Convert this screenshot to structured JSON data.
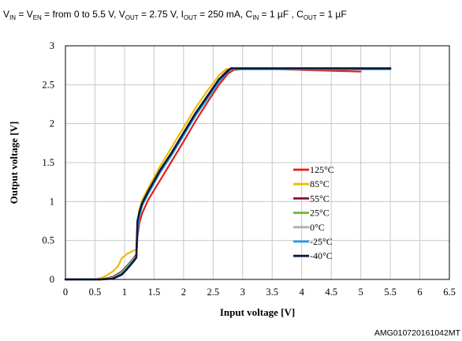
{
  "chart_data": {
    "type": "line",
    "title_parts": [
      {
        "t": "V",
        "sub": false
      },
      {
        "t": "IN",
        "sub": true
      },
      {
        "t": " = V",
        "sub": false
      },
      {
        "t": "EN",
        "sub": true
      },
      {
        "t": " = from 0 to 5.5 V, V",
        "sub": false
      },
      {
        "t": "OUT",
        "sub": true
      },
      {
        "t": " = 2.75 V, I",
        "sub": false
      },
      {
        "t": "OUT",
        "sub": true
      },
      {
        "t": " = 250 mA,  C",
        "sub": false
      },
      {
        "t": "IN",
        "sub": true
      },
      {
        "t": " = 1 µF , C",
        "sub": false
      },
      {
        "t": "OUT",
        "sub": true
      },
      {
        "t": " = 1 µF",
        "sub": false
      }
    ],
    "xlabel": "Input voltage [V]",
    "ylabel": "Output voltage [V]",
    "xlim": [
      0,
      6.5
    ],
    "ylim": [
      0,
      3
    ],
    "xticks": [
      "0",
      "0.5",
      "1",
      "1.5",
      "2",
      "2.5",
      "3",
      "3.5",
      "4",
      "4.5",
      "5",
      "5.5",
      "6",
      "6.5"
    ],
    "yticks": [
      "0",
      "0.5",
      "1",
      "1.5",
      "2",
      "2.5",
      "3"
    ],
    "grid": true,
    "legend_position": "center-right",
    "series": [
      {
        "name": "125°C",
        "color": "#e41e1e",
        "x": [
          0,
          0.5,
          0.7,
          0.85,
          0.95,
          1.05,
          1.15,
          1.2,
          1.22,
          1.25,
          1.3,
          1.4,
          1.6,
          1.8,
          2.0,
          2.2,
          2.4,
          2.6,
          2.75,
          2.85,
          3.0,
          3.5,
          4.0,
          4.5,
          5.0
        ],
        "y": [
          0,
          0,
          0.01,
          0.04,
          0.1,
          0.18,
          0.25,
          0.3,
          0.55,
          0.72,
          0.85,
          1.02,
          1.27,
          1.52,
          1.77,
          2.03,
          2.27,
          2.5,
          2.64,
          2.69,
          2.7,
          2.7,
          2.69,
          2.68,
          2.67
        ]
      },
      {
        "name": "85°C",
        "color": "#f5b800",
        "x": [
          0,
          0.5,
          0.65,
          0.8,
          0.9,
          0.95,
          1.05,
          1.15,
          1.2,
          1.22,
          1.25,
          1.3,
          1.4,
          1.6,
          1.8,
          2.0,
          2.2,
          2.4,
          2.6,
          2.72,
          2.8,
          3.0,
          3.5,
          4.0,
          4.5,
          5.0,
          5.5
        ],
        "y": [
          0,
          0,
          0.03,
          0.1,
          0.18,
          0.27,
          0.33,
          0.37,
          0.38,
          0.72,
          0.9,
          1.02,
          1.17,
          1.45,
          1.7,
          1.95,
          2.2,
          2.42,
          2.62,
          2.7,
          2.7,
          2.7,
          2.7,
          2.7,
          2.7,
          2.7,
          2.7
        ]
      },
      {
        "name": "55°C",
        "color": "#8b0a3c",
        "x": [
          0,
          0.6,
          0.8,
          0.95,
          1.05,
          1.15,
          1.2,
          1.22,
          1.25,
          1.3,
          1.4,
          1.6,
          1.8,
          2.0,
          2.2,
          2.4,
          2.6,
          2.75,
          2.8,
          3.0,
          3.5,
          4.0,
          4.5,
          5.0,
          5.5
        ],
        "y": [
          0,
          0,
          0.03,
          0.1,
          0.18,
          0.27,
          0.32,
          0.68,
          0.85,
          0.98,
          1.13,
          1.4,
          1.63,
          1.88,
          2.13,
          2.35,
          2.57,
          2.69,
          2.7,
          2.7,
          2.7,
          2.7,
          2.7,
          2.7,
          2.7
        ]
      },
      {
        "name": "25°C",
        "color": "#70b830",
        "x": [
          0,
          0.6,
          0.8,
          0.95,
          1.05,
          1.15,
          1.2,
          1.22,
          1.25,
          1.3,
          1.4,
          1.6,
          1.8,
          2.0,
          2.2,
          2.4,
          2.6,
          2.76,
          2.8,
          3.0,
          3.5,
          4.0,
          4.5,
          5.0,
          5.5
        ],
        "y": [
          0,
          0,
          0.02,
          0.09,
          0.17,
          0.26,
          0.3,
          0.66,
          0.84,
          0.97,
          1.12,
          1.39,
          1.62,
          1.87,
          2.12,
          2.34,
          2.56,
          2.69,
          2.7,
          2.7,
          2.7,
          2.7,
          2.7,
          2.7,
          2.7
        ]
      },
      {
        "name": "0°C",
        "color": "#a8b4b8",
        "x": [
          0,
          0.6,
          0.8,
          0.95,
          1.05,
          1.15,
          1.2,
          1.22,
          1.25,
          1.3,
          1.4,
          1.6,
          1.8,
          2.0,
          2.2,
          2.4,
          2.6,
          2.77,
          2.8,
          3.0,
          3.5,
          4.0,
          4.5,
          5.0,
          5.5
        ],
        "y": [
          0,
          0,
          0.02,
          0.08,
          0.16,
          0.25,
          0.29,
          0.64,
          0.82,
          0.96,
          1.11,
          1.38,
          1.61,
          1.86,
          2.11,
          2.33,
          2.55,
          2.69,
          2.7,
          2.7,
          2.7,
          2.7,
          2.7,
          2.7,
          2.7
        ]
      },
      {
        "name": "-25°C",
        "color": "#1a9fe0",
        "x": [
          0,
          0.6,
          0.8,
          0.95,
          1.05,
          1.15,
          1.2,
          1.22,
          1.25,
          1.3,
          1.4,
          1.6,
          1.8,
          2.0,
          2.2,
          2.4,
          2.6,
          2.78,
          2.8,
          3.0,
          3.5,
          4.0,
          4.5,
          5.0,
          5.5
        ],
        "y": [
          0,
          0,
          0.01,
          0.07,
          0.15,
          0.24,
          0.28,
          0.62,
          0.81,
          0.95,
          1.1,
          1.37,
          1.6,
          1.85,
          2.1,
          2.32,
          2.54,
          2.69,
          2.7,
          2.7,
          2.7,
          2.7,
          2.7,
          2.7,
          2.7
        ]
      },
      {
        "name": "-40°C",
        "color": "#0b1a3d",
        "x": [
          0,
          0.6,
          0.8,
          0.95,
          1.05,
          1.15,
          1.2,
          1.22,
          1.25,
          1.3,
          1.4,
          1.6,
          1.8,
          2.0,
          2.2,
          2.4,
          2.6,
          2.8,
          3.0,
          3.5,
          4.0,
          4.5,
          5.0,
          5.5
        ],
        "y": [
          0,
          0,
          0.01,
          0.06,
          0.14,
          0.23,
          0.28,
          0.75,
          0.86,
          0.98,
          1.13,
          1.4,
          1.63,
          1.88,
          2.13,
          2.35,
          2.57,
          2.71,
          2.71,
          2.71,
          2.71,
          2.71,
          2.71,
          2.71
        ]
      }
    ],
    "footer": "AMG010720161042MT"
  }
}
